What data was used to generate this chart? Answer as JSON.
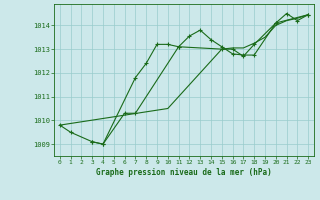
{
  "xlabel": "Graphe pression niveau de la mer (hPa)",
  "xlim": [
    -0.5,
    23.5
  ],
  "ylim": [
    1008.5,
    1014.9
  ],
  "yticks": [
    1009,
    1010,
    1011,
    1012,
    1013,
    1014
  ],
  "xticks": [
    0,
    1,
    2,
    3,
    4,
    5,
    6,
    7,
    8,
    9,
    10,
    11,
    12,
    13,
    14,
    15,
    16,
    17,
    18,
    19,
    20,
    21,
    22,
    23
  ],
  "background_color": "#cce8ea",
  "grid_color": "#99cccc",
  "line_color": "#1a6b1a",
  "line1_x": [
    0,
    1,
    3,
    4,
    7,
    8,
    9,
    10,
    11,
    12,
    13,
    14,
    15,
    16,
    17,
    18,
    20,
    21,
    22,
    23
  ],
  "line1_y": [
    1009.8,
    1009.5,
    1009.1,
    1009.0,
    1011.8,
    1012.4,
    1013.2,
    1013.2,
    1013.1,
    1013.55,
    1013.8,
    1013.4,
    1013.1,
    1012.8,
    1012.75,
    1012.75,
    1014.1,
    1014.5,
    1014.2,
    1014.45
  ],
  "line2_x": [
    3,
    4,
    6,
    7,
    11,
    15,
    16,
    17,
    18,
    20,
    23
  ],
  "line2_y": [
    1009.1,
    1009.0,
    1010.3,
    1010.3,
    1013.1,
    1013.0,
    1013.0,
    1012.7,
    1013.2,
    1014.1,
    1014.45
  ],
  "line3_x": [
    0,
    10,
    11,
    12,
    13,
    14,
    15,
    16,
    17,
    18,
    19,
    20,
    21,
    22,
    23
  ],
  "line3_y": [
    1009.8,
    1010.5,
    1011.0,
    1011.5,
    1012.0,
    1012.5,
    1013.0,
    1013.05,
    1013.05,
    1013.25,
    1013.5,
    1014.0,
    1014.2,
    1014.3,
    1014.45
  ]
}
